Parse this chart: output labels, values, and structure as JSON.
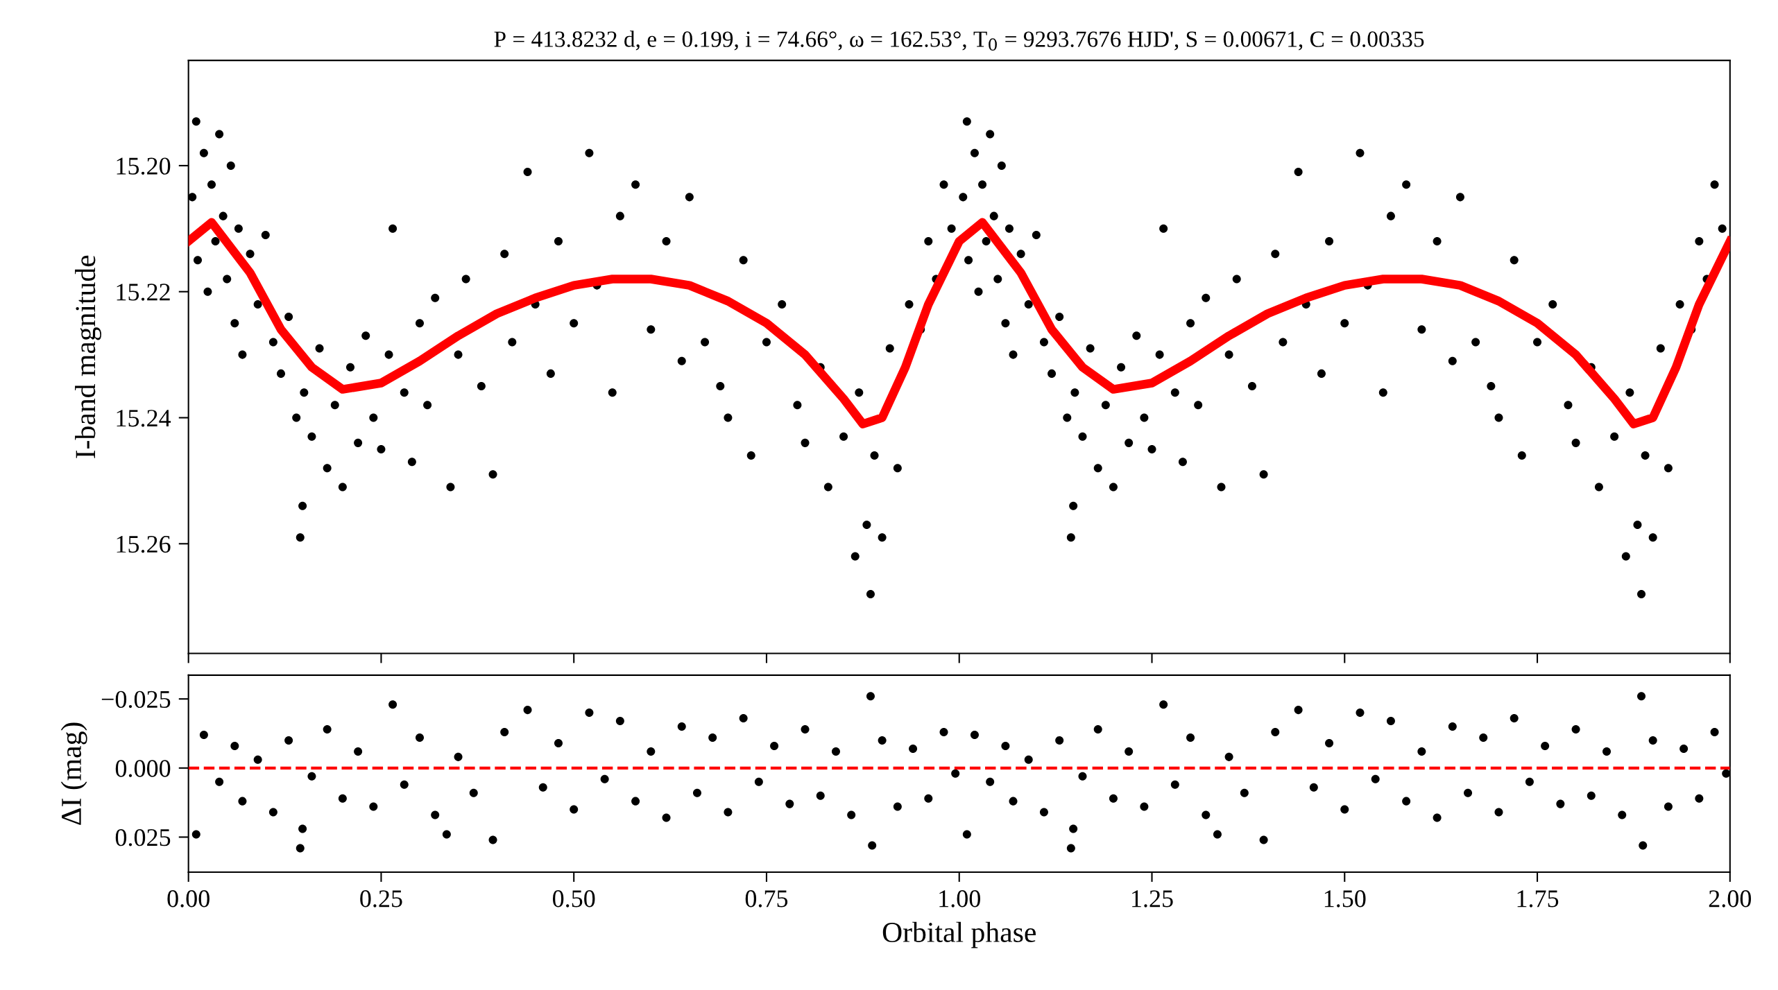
{
  "chart_data": [
    {
      "type": "scatter",
      "title": "P = 413.8232 d, e = 0.199, i = 74.66°, ω = 162.53°, T$_{0}$ = 9293.7676 HJD', S = 0.00671, C = 0.00335",
      "ylabel": "I-band magnitude",
      "xlim": [
        0,
        2
      ],
      "ylim": [
        15.2774,
        15.1833
      ],
      "tick_labels": "y",
      "xticks": [
        {
          "value": 0,
          "label": null
        },
        {
          "value": 0.25,
          "label": null
        },
        {
          "value": 0.5,
          "label": null
        },
        {
          "value": 0.75,
          "label": null
        },
        {
          "value": 1,
          "label": null
        },
        {
          "value": 1.25,
          "label": null
        },
        {
          "value": 1.5,
          "label": null
        },
        {
          "value": 1.75,
          "label": null
        },
        {
          "value": 2,
          "label": null
        }
      ],
      "yticks": [
        {
          "value": 15.2,
          "label": "15.20"
        },
        {
          "value": 15.22,
          "label": "15.22"
        },
        {
          "value": 15.24,
          "label": "15.24"
        },
        {
          "value": 15.26,
          "label": "15.26"
        }
      ],
      "series": [
        {
          "marker": "circle",
          "color": "#000000",
          "x": [
            0.005,
            0.01,
            0.012,
            0.02,
            0.025,
            0.03,
            0.035,
            0.04,
            0.045,
            0.05,
            0.055,
            0.06,
            0.065,
            0.07,
            0.08,
            0.09,
            0.1,
            0.11,
            0.12,
            0.13,
            0.14,
            0.145,
            0.148,
            0.15,
            0.16,
            0.17,
            0.18,
            0.19,
            0.2,
            0.21,
            0.22,
            0.23,
            0.24,
            0.25,
            0.26,
            0.265,
            0.28,
            0.29,
            0.3,
            0.31,
            0.32,
            0.34,
            0.35,
            0.36,
            0.38,
            0.395,
            0.41,
            0.42,
            0.44,
            0.45,
            0.47,
            0.48,
            0.5,
            0.52,
            0.53,
            0.55,
            0.56,
            0.58,
            0.6,
            0.62,
            0.64,
            0.65,
            0.67,
            0.69,
            0.7,
            0.72,
            0.73,
            0.75,
            0.77,
            0.79,
            0.8,
            0.82,
            0.83,
            0.85,
            0.865,
            0.87,
            0.88,
            0.885,
            0.89,
            0.9,
            0.91,
            0.92,
            0.935,
            0.95,
            0.96,
            0.97,
            0.98,
            0.99,
            1.005,
            1.01,
            1.012,
            1.02,
            1.025,
            1.03,
            1.035,
            1.04,
            1.045,
            1.05,
            1.055,
            1.06,
            1.065,
            1.07,
            1.08,
            1.09,
            1.1,
            1.11,
            1.12,
            1.13,
            1.14,
            1.145,
            1.148,
            1.15,
            1.16,
            1.17,
            1.18,
            1.19,
            1.2,
            1.21,
            1.22,
            1.23,
            1.24,
            1.25,
            1.26,
            1.265,
            1.28,
            1.29,
            1.3,
            1.31,
            1.32,
            1.34,
            1.35,
            1.36,
            1.38,
            1.395,
            1.41,
            1.42,
            1.44,
            1.45,
            1.47,
            1.48,
            1.5,
            1.52,
            1.53,
            1.55,
            1.56,
            1.58,
            1.6,
            1.62,
            1.64,
            1.65,
            1.67,
            1.69,
            1.7,
            1.72,
            1.73,
            1.75,
            1.77,
            1.79,
            1.8,
            1.82,
            1.83,
            1.85,
            1.865,
            1.87,
            1.88,
            1.885,
            1.89,
            1.9,
            1.91,
            1.92,
            1.935,
            1.95,
            1.96,
            1.97,
            1.98,
            1.99
          ],
          "values": [
            15.205,
            15.193,
            15.215,
            15.198,
            15.22,
            15.203,
            15.212,
            15.195,
            15.208,
            15.218,
            15.2,
            15.225,
            15.21,
            15.23,
            15.214,
            15.222,
            15.211,
            15.228,
            15.233,
            15.224,
            15.24,
            15.259,
            15.254,
            15.236,
            15.243,
            15.229,
            15.248,
            15.238,
            15.251,
            15.232,
            15.244,
            15.227,
            15.24,
            15.245,
            15.23,
            15.21,
            15.236,
            15.247,
            15.225,
            15.238,
            15.221,
            15.251,
            15.23,
            15.218,
            15.235,
            15.249,
            15.214,
            15.228,
            15.201,
            15.222,
            15.233,
            15.212,
            15.225,
            15.198,
            15.219,
            15.236,
            15.208,
            15.203,
            15.226,
            15.212,
            15.231,
            15.205,
            15.228,
            15.235,
            15.24,
            15.215,
            15.246,
            15.228,
            15.222,
            15.238,
            15.244,
            15.232,
            15.251,
            15.243,
            15.262,
            15.236,
            15.257,
            15.268,
            15.246,
            15.259,
            15.229,
            15.248,
            15.222,
            15.226,
            15.212,
            15.218,
            15.203,
            15.21,
            15.205,
            15.193,
            15.215,
            15.198,
            15.22,
            15.203,
            15.212,
            15.195,
            15.208,
            15.218,
            15.2,
            15.225,
            15.21,
            15.23,
            15.214,
            15.222,
            15.211,
            15.228,
            15.233,
            15.224,
            15.24,
            15.259,
            15.254,
            15.236,
            15.243,
            15.229,
            15.248,
            15.238,
            15.251,
            15.232,
            15.244,
            15.227,
            15.24,
            15.245,
            15.23,
            15.21,
            15.236,
            15.247,
            15.225,
            15.238,
            15.221,
            15.251,
            15.23,
            15.218,
            15.235,
            15.249,
            15.214,
            15.228,
            15.201,
            15.222,
            15.233,
            15.212,
            15.225,
            15.198,
            15.219,
            15.236,
            15.208,
            15.203,
            15.226,
            15.212,
            15.231,
            15.205,
            15.228,
            15.235,
            15.24,
            15.215,
            15.246,
            15.228,
            15.222,
            15.238,
            15.244,
            15.232,
            15.251,
            15.243,
            15.262,
            15.236,
            15.257,
            15.268,
            15.246,
            15.259,
            15.229,
            15.248,
            15.222,
            15.226,
            15.212,
            15.218,
            15.203,
            15.21
          ]
        },
        {
          "type": "line",
          "color": "#ff0000",
          "x": [
            0,
            0.03,
            0.08,
            0.12,
            0.16,
            0.2,
            0.25,
            0.3,
            0.35,
            0.4,
            0.45,
            0.5,
            0.55,
            0.6,
            0.65,
            0.7,
            0.75,
            0.8,
            0.85,
            0.875,
            0.9,
            0.93,
            0.96,
            1.0,
            1.03,
            1.08,
            1.12,
            1.16,
            1.2,
            1.25,
            1.3,
            1.35,
            1.4,
            1.45,
            1.5,
            1.55,
            1.6,
            1.65,
            1.7,
            1.75,
            1.8,
            1.85,
            1.875,
            1.9,
            1.93,
            1.96,
            2.0
          ],
          "values": [
            15.212,
            15.209,
            15.217,
            15.226,
            15.232,
            15.2355,
            15.2345,
            15.231,
            15.227,
            15.2235,
            15.221,
            15.219,
            15.218,
            15.218,
            15.219,
            15.2215,
            15.225,
            15.23,
            15.237,
            15.241,
            15.24,
            15.232,
            15.222,
            15.212,
            15.209,
            15.217,
            15.226,
            15.232,
            15.2355,
            15.2345,
            15.231,
            15.227,
            15.2235,
            15.221,
            15.219,
            15.218,
            15.218,
            15.219,
            15.2215,
            15.225,
            15.23,
            15.237,
            15.241,
            15.24,
            15.232,
            15.222,
            15.212
          ]
        }
      ]
    },
    {
      "type": "scatter",
      "xlabel": "Orbital phase",
      "ylabel": "ΔI (mag)",
      "xlim": [
        0,
        2
      ],
      "ylim": [
        0.0377,
        -0.0336
      ],
      "xticks": [
        {
          "value": 0,
          "label": "0.00"
        },
        {
          "value": 0.25,
          "label": "0.25"
        },
        {
          "value": 0.5,
          "label": "0.50"
        },
        {
          "value": 0.75,
          "label": "0.75"
        },
        {
          "value": 1,
          "label": "1.00"
        },
        {
          "value": 1.25,
          "label": "1.25"
        },
        {
          "value": 1.5,
          "label": "1.50"
        },
        {
          "value": 1.75,
          "label": "1.75"
        },
        {
          "value": 2,
          "label": "2.00"
        }
      ],
      "yticks": [
        {
          "value": -0.025,
          "label": "−0.025"
        },
        {
          "value": 0,
          "label": "0.000"
        },
        {
          "value": 0.025,
          "label": "0.025"
        }
      ],
      "ref_lines": [
        {
          "axis": "y",
          "value": 0,
          "color": "#ff0000",
          "line_style": "dashed"
        }
      ],
      "series": [
        {
          "marker": "circle",
          "color": "#000000",
          "x": [
            0.01,
            0.02,
            0.04,
            0.06,
            0.07,
            0.09,
            0.11,
            0.13,
            0.145,
            0.148,
            0.16,
            0.18,
            0.2,
            0.22,
            0.24,
            0.265,
            0.28,
            0.3,
            0.32,
            0.335,
            0.35,
            0.37,
            0.395,
            0.41,
            0.44,
            0.46,
            0.48,
            0.5,
            0.52,
            0.54,
            0.56,
            0.58,
            0.6,
            0.62,
            0.64,
            0.66,
            0.68,
            0.7,
            0.72,
            0.74,
            0.76,
            0.78,
            0.8,
            0.82,
            0.84,
            0.86,
            0.885,
            0.887,
            0.9,
            0.92,
            0.94,
            0.96,
            0.98,
            0.995,
            1.01,
            1.02,
            1.04,
            1.06,
            1.07,
            1.09,
            1.11,
            1.13,
            1.145,
            1.148,
            1.16,
            1.18,
            1.2,
            1.22,
            1.24,
            1.265,
            1.28,
            1.3,
            1.32,
            1.335,
            1.35,
            1.37,
            1.395,
            1.41,
            1.44,
            1.46,
            1.48,
            1.5,
            1.52,
            1.54,
            1.56,
            1.58,
            1.6,
            1.62,
            1.64,
            1.66,
            1.68,
            1.7,
            1.72,
            1.74,
            1.76,
            1.78,
            1.8,
            1.82,
            1.84,
            1.86,
            1.885,
            1.887,
            1.9,
            1.92,
            1.94,
            1.96,
            1.98,
            1.995
          ],
          "values": [
            0.024,
            -0.012,
            0.005,
            -0.008,
            0.012,
            -0.003,
            0.016,
            -0.01,
            0.029,
            0.022,
            0.003,
            -0.014,
            0.011,
            -0.006,
            0.014,
            -0.023,
            0.006,
            -0.011,
            0.017,
            0.024,
            -0.004,
            0.009,
            0.026,
            -0.013,
            -0.021,
            0.007,
            -0.009,
            0.015,
            -0.02,
            0.004,
            -0.017,
            0.012,
            -0.006,
            0.018,
            -0.015,
            0.009,
            -0.011,
            0.016,
            -0.018,
            0.005,
            -0.008,
            0.013,
            -0.014,
            0.01,
            -0.006,
            0.017,
            -0.026,
            0.028,
            -0.01,
            0.014,
            -0.007,
            0.011,
            -0.013,
            0.002,
            0.024,
            -0.012,
            0.005,
            -0.008,
            0.012,
            -0.003,
            0.016,
            -0.01,
            0.029,
            0.022,
            0.003,
            -0.014,
            0.011,
            -0.006,
            0.014,
            -0.023,
            0.006,
            -0.011,
            0.017,
            0.024,
            -0.004,
            0.009,
            0.026,
            -0.013,
            -0.021,
            0.007,
            -0.009,
            0.015,
            -0.02,
            0.004,
            -0.017,
            0.012,
            -0.006,
            0.018,
            -0.015,
            0.009,
            -0.011,
            0.016,
            -0.018,
            0.005,
            -0.008,
            0.013,
            -0.014,
            0.01,
            -0.006,
            0.017,
            -0.026,
            0.028,
            -0.01,
            0.014,
            -0.007,
            0.011,
            -0.013,
            0.002
          ]
        }
      ]
    }
  ]
}
